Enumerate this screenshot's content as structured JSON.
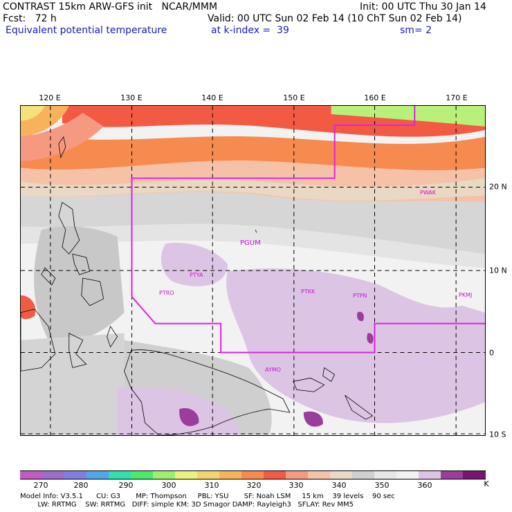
{
  "header": {
    "line1_left": "CONTRAST 15km ARW-GFS init   NCAR/MMM",
    "line1_right": "Init: 00 UTC Thu 30 Jan 14",
    "line2_left": "Fcst:   72 h",
    "line2_right": "Valid: 00 UTC Sun 02 Feb 14 (10 ChT Sun 02 Feb 14)",
    "line3_field": "Equivalent potential temperature",
    "line3_level": "at k-index =  39",
    "line3_smooth": "sm= 2"
  },
  "map": {
    "lon_labels": [
      "120 E",
      "130 E",
      "140 E",
      "150 E",
      "160 E",
      "170 E"
    ],
    "lat_labels": [
      "20 N",
      "10 N",
      "0",
      "10 S"
    ],
    "stations": [
      "PGUM",
      "PTYA",
      "PTRO",
      "PTKK",
      "PTPN",
      "PKMJ",
      "PWAK",
      "AYMO"
    ]
  },
  "legend": {
    "values": [
      "270",
      "280",
      "290",
      "300",
      "310",
      "320",
      "330",
      "340",
      "350",
      "360"
    ],
    "unit": "K",
    "colors": [
      "#c15bbf",
      "#9c6cc9",
      "#7e7fe0",
      "#4fa6e8",
      "#2fe0b0",
      "#49eb6c",
      "#9df06e",
      "#e8f27c",
      "#f5d470",
      "#f7b25c",
      "#f78a4e",
      "#f35a44",
      "#f59a80",
      "#f5c2a8",
      "#e8d8c4",
      "#d0d0d0",
      "#e8e8e8",
      "#f2f2f2",
      "#dcc4e4",
      "#9c3c9c",
      "#7a1474"
    ]
  },
  "footer": {
    "line1": "Model Info: V3.5.1      CU: G3       MP: Thompson     PBL: YSU       SF: Noah LSM     15 km    39 levels    90 sec",
    "line2": "        LW: RRTMG    SW: RRTMG   DIFF: simple KM: 3D Smagor DAMP: Rayleigh3   SFLAY: Rev MM5"
  }
}
